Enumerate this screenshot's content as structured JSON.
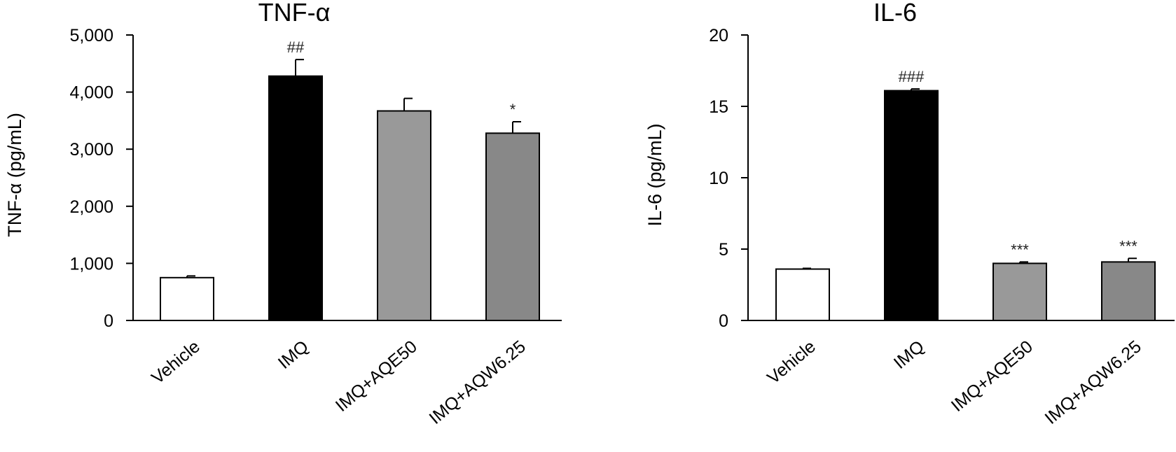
{
  "chart_data": [
    {
      "type": "bar",
      "title": "TNF-α",
      "ylabel": "TNF-α (pg/mL)",
      "xlabel": "",
      "categories": [
        "Vehicle",
        "IMQ",
        "IMQ+AQE50",
        "IMQ+AQW6.25"
      ],
      "values": [
        750,
        4280,
        3670,
        3280
      ],
      "errors": [
        30,
        290,
        220,
        200
      ],
      "significance": [
        "",
        "##",
        "",
        "*"
      ],
      "colors": [
        "#ffffff",
        "#000000",
        "#999999",
        "#888888"
      ],
      "ylim": [
        0,
        5000
      ],
      "yticks": [
        0,
        1000,
        2000,
        3000,
        4000,
        5000
      ],
      "ytick_labels": [
        "0",
        "1,000",
        "2,000",
        "3,000",
        "4,000",
        "5,000"
      ],
      "grid": false
    },
    {
      "type": "bar",
      "title": "IL-6",
      "ylabel": "IL-6 (pg/mL)",
      "xlabel": "",
      "categories": [
        "Vehicle",
        "IMQ",
        "IMQ+AQE50",
        "IMQ+AQW6.25"
      ],
      "values": [
        3.6,
        16.1,
        4.0,
        4.1
      ],
      "errors": [
        0.05,
        0.12,
        0.1,
        0.25
      ],
      "significance": [
        "",
        "###",
        "***",
        "***"
      ],
      "colors": [
        "#ffffff",
        "#000000",
        "#999999",
        "#888888"
      ],
      "ylim": [
        0,
        20
      ],
      "yticks": [
        0,
        5,
        10,
        15,
        20
      ],
      "ytick_labels": [
        "0",
        "5",
        "10",
        "15",
        "20"
      ],
      "grid": false
    }
  ]
}
